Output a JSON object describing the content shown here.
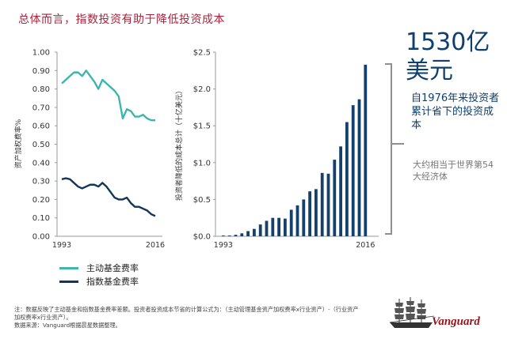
{
  "title": "总体而言，指数投资有助于降低投资成本",
  "highlight": {
    "big_number_line1": "1530亿",
    "big_number_line2": "美元",
    "description": "自1976年来投资者累计省下的投资成本",
    "equivalent": "大约相当于世界第54大经济体"
  },
  "legend": {
    "active_label": "主动基金费率",
    "index_label": "指数基金费率"
  },
  "colors": {
    "active": "#3fb5ad",
    "index": "#12355b",
    "bars": "#14406d",
    "title": "#b0213a",
    "accent_text": "#0f3f6e",
    "bracket": "#8f8f8f"
  },
  "footnote": {
    "line1": "注：数据反映了主动基金和指数基金费率差额。投资者投资成本节省的计算公式为：（主动管理基金资产加权费率x行业资产）-（行业资产加权费率x行业资产）。",
    "line2": "数据来源：Vanguard根据晨星数据整理。"
  },
  "logo": {
    "brand": "Vanguard",
    "icon": "ship-icon"
  },
  "chart_data": [
    {
      "type": "line",
      "title": "",
      "xlabel": "",
      "ylabel": "资产加权费率%",
      "x": [
        1993,
        1994,
        1995,
        1996,
        1997,
        1998,
        1999,
        2000,
        2001,
        2002,
        2003,
        2004,
        2005,
        2006,
        2007,
        2008,
        2009,
        2010,
        2011,
        2012,
        2013,
        2014,
        2015,
        2016
      ],
      "xtick_labels": [
        "1993",
        "2016"
      ],
      "yticks": [
        "0.00",
        "0.10",
        "0.20",
        "0.30",
        "0.40",
        "0.50",
        "0.60",
        "0.70",
        "0.80",
        "0.90",
        "1.00"
      ],
      "ylim": [
        0,
        1.0
      ],
      "grid": false,
      "legend_position": "bottom",
      "series": [
        {
          "name": "主动基金费率",
          "color": "#3fb5ad",
          "values": [
            0.83,
            0.85,
            0.87,
            0.89,
            0.89,
            0.87,
            0.9,
            0.87,
            0.84,
            0.8,
            0.85,
            0.83,
            0.81,
            0.79,
            0.76,
            0.64,
            0.69,
            0.68,
            0.65,
            0.65,
            0.66,
            0.64,
            0.63,
            0.63
          ]
        },
        {
          "name": "指数基金费率",
          "color": "#12355b",
          "values": [
            0.31,
            0.315,
            0.31,
            0.29,
            0.27,
            0.26,
            0.27,
            0.28,
            0.28,
            0.27,
            0.29,
            0.27,
            0.24,
            0.21,
            0.2,
            0.2,
            0.21,
            0.18,
            0.16,
            0.16,
            0.15,
            0.14,
            0.12,
            0.11
          ]
        }
      ]
    },
    {
      "type": "bar",
      "title": "",
      "xlabel": "",
      "ylabel": "投资者降低的成本总计（十亿美元）",
      "categories": [
        1993,
        1994,
        1995,
        1996,
        1997,
        1998,
        1999,
        2000,
        2001,
        2002,
        2003,
        2004,
        2005,
        2006,
        2007,
        2008,
        2009,
        2010,
        2011,
        2012,
        2013,
        2014,
        2015,
        2016
      ],
      "xtick_labels": [
        "1993",
        "2016"
      ],
      "yticks": [
        "$0.0",
        "$0.5",
        "$1.0",
        "$1.5",
        "$2.0",
        "$2.5"
      ],
      "ylim": [
        0,
        2.5
      ],
      "grid": false,
      "values": [
        0.01,
        0.01,
        0.02,
        0.04,
        0.07,
        0.1,
        0.16,
        0.21,
        0.25,
        0.25,
        0.24,
        0.36,
        0.42,
        0.5,
        0.61,
        0.64,
        0.86,
        0.85,
        1.04,
        1.22,
        1.55,
        1.78,
        1.86,
        2.33
      ]
    }
  ]
}
